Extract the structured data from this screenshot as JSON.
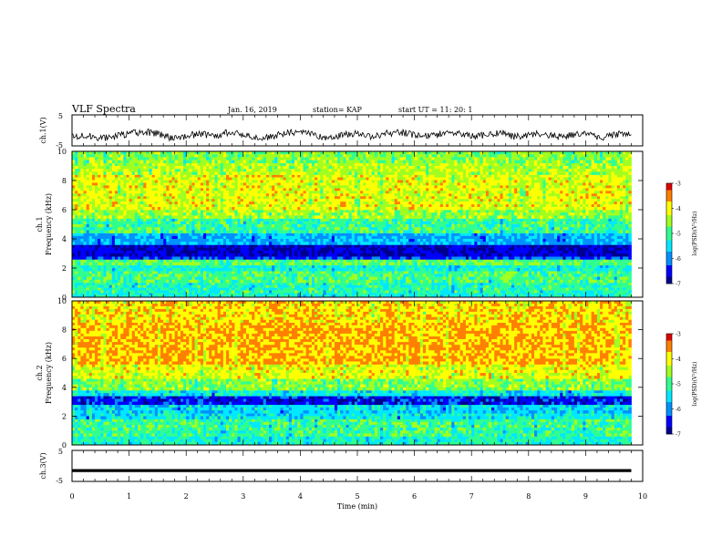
{
  "header": {
    "title": "VLF Spectra",
    "date": "Jan. 16, 2019",
    "station": "station= KAP",
    "start": "start  UT =   11: 20: 1"
  },
  "colors": {
    "background": "#ffffff",
    "axis": "#000000",
    "waveform": "#000000",
    "colormap": [
      "#000090",
      "#0000ff",
      "#0090ff",
      "#00e8ff",
      "#30ff90",
      "#a0ff20",
      "#ffff00",
      "#ff8000",
      "#e00000",
      "#ffffff"
    ]
  },
  "chart_data": [
    {
      "id": "ch1-waveform",
      "type": "line",
      "ylabel": "ch.1(V)",
      "ylim": [
        -5,
        5
      ],
      "yticks": [
        "5",
        "-5"
      ],
      "xlim": [
        0,
        10
      ],
      "series": [
        {
          "x": [
            0,
            0.25,
            0.5,
            0.75,
            1.0,
            1.25,
            1.5,
            1.75,
            2.0,
            2.25,
            2.5,
            2.75,
            3.0,
            3.25,
            3.5,
            3.75,
            4.0,
            4.25,
            4.5,
            4.75,
            5.0,
            5.25,
            5.5,
            5.75,
            6.0,
            6.25,
            6.5,
            6.75,
            7.0,
            7.25,
            7.5,
            7.75,
            8.0,
            8.25,
            8.5,
            8.75,
            9.0,
            9.25,
            9.5,
            9.75,
            9.8
          ],
          "y": [
            -2.0,
            -1.5,
            -2.5,
            -2.0,
            -1.0,
            -0.5,
            -1.0,
            -2.5,
            -2.0,
            -1.0,
            -2.0,
            -0.5,
            -1.5,
            -2.5,
            -2.0,
            -1.0,
            -0.5,
            -1.5,
            -2.5,
            -1.5,
            -1.0,
            -2.0,
            -1.0,
            -0.5,
            -1.5,
            -2.0,
            -1.0,
            -0.5,
            -2.0,
            -1.5,
            -0.5,
            -2.0,
            -1.5,
            -1.0,
            -2.0,
            -1.5,
            -1.0,
            -2.5,
            -1.5,
            -1.0,
            -1.5
          ]
        }
      ]
    },
    {
      "id": "ch1-spectrogram",
      "type": "heatmap",
      "ylabel": "Frequency (kHz)",
      "channel_label": "ch.1",
      "ylim": [
        0,
        10
      ],
      "yticks": [
        "0",
        "2",
        "4",
        "6",
        "8",
        "10"
      ],
      "xlim": [
        0,
        10
      ],
      "z_label": "log(PSD)(V²/Hz)",
      "colorbar_ticks": [
        "-3",
        "-4",
        "-5",
        "-6",
        "-7"
      ],
      "zlim": [
        -7,
        -3
      ],
      "frequency_bands_khz": [
        {
          "from": 0.0,
          "to": 0.3,
          "level": -5.3
        },
        {
          "from": 0.3,
          "to": 1.0,
          "level": -5.1
        },
        {
          "from": 1.0,
          "to": 1.8,
          "level": -4.9
        },
        {
          "from": 1.8,
          "to": 2.2,
          "level": -5.3
        },
        {
          "from": 2.2,
          "to": 2.6,
          "level": -4.8
        },
        {
          "from": 2.6,
          "to": 2.8,
          "level": -6.3
        },
        {
          "from": 2.8,
          "to": 3.6,
          "level": -6.7
        },
        {
          "from": 3.6,
          "to": 4.4,
          "level": -5.8
        },
        {
          "from": 4.4,
          "to": 5.4,
          "level": -5.0
        },
        {
          "from": 5.4,
          "to": 6.0,
          "level": -4.5
        },
        {
          "from": 6.0,
          "to": 8.4,
          "level": -4.1
        },
        {
          "from": 8.4,
          "to": 9.2,
          "level": -4.4
        },
        {
          "from": 9.2,
          "to": 10.0,
          "level": -4.6
        }
      ]
    },
    {
      "id": "ch2-spectrogram",
      "type": "heatmap",
      "ylabel": "Frequency (kHz)",
      "channel_label": "ch.2",
      "ylim": [
        0,
        10
      ],
      "yticks": [
        "0",
        "2",
        "4",
        "6",
        "8",
        "10"
      ],
      "xlim": [
        0,
        10
      ],
      "z_label": "log(PSD)(V²/Hz)",
      "colorbar_ticks": [
        "-3",
        "-4",
        "-5",
        "-6",
        "-7"
      ],
      "zlim": [
        -7,
        -3
      ],
      "frequency_bands_khz": [
        {
          "from": 0.0,
          "to": 0.6,
          "level": -5.2
        },
        {
          "from": 0.6,
          "to": 1.8,
          "level": -5.0
        },
        {
          "from": 1.8,
          "to": 2.2,
          "level": -5.4
        },
        {
          "from": 2.2,
          "to": 2.8,
          "level": -5.6
        },
        {
          "from": 2.8,
          "to": 3.4,
          "level": -6.5
        },
        {
          "from": 3.4,
          "to": 3.8,
          "level": -5.4
        },
        {
          "from": 3.8,
          "to": 4.6,
          "level": -4.6
        },
        {
          "from": 4.6,
          "to": 5.6,
          "level": -4.1
        },
        {
          "from": 5.6,
          "to": 8.5,
          "level": -3.7
        },
        {
          "from": 8.5,
          "to": 10.0,
          "level": -3.9
        }
      ]
    },
    {
      "id": "ch3-waveform",
      "type": "line",
      "ylabel": "ch.3(V)",
      "ylim": [
        -5,
        5
      ],
      "yticks": [
        "5",
        "-5"
      ],
      "xlim": [
        0,
        10
      ],
      "xlabel": "Time (min)",
      "xticks": [
        "0",
        "1",
        "2",
        "3",
        "4",
        "5",
        "6",
        "7",
        "8",
        "9",
        "10"
      ],
      "series": [
        {
          "x": [
            0,
            9.8
          ],
          "y": [
            -1.5,
            -1.5
          ]
        }
      ]
    }
  ]
}
